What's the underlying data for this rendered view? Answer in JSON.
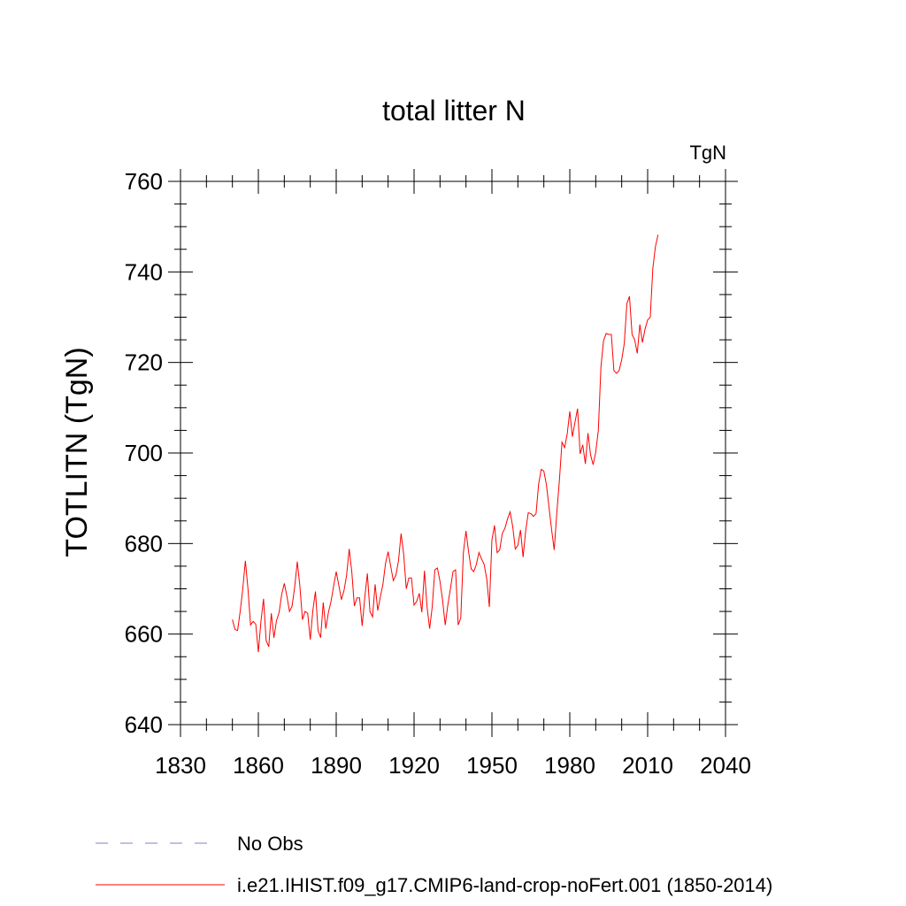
{
  "chart_data": {
    "type": "line",
    "title": "total litter N",
    "units_label": "TgN",
    "xlabel": "",
    "ylabel": "TOTLITN  (TgN)",
    "xlim": [
      1830,
      2040
    ],
    "ylim": [
      640,
      760
    ],
    "x_ticks": [
      "1830",
      "1860",
      "1890",
      "1920",
      "1950",
      "1980",
      "2010",
      "2040"
    ],
    "y_ticks": [
      "640",
      "660",
      "680",
      "700",
      "720",
      "740",
      "760"
    ],
    "grid": false,
    "legend_position": "bottom",
    "legend": [
      {
        "label": "No Obs",
        "color": "#8080c0",
        "style": "dashed"
      },
      {
        "label": "i.e21.IHIST.f09_g17.CMIP6-land-crop-noFert.001 (1850-2014)",
        "color": "#ff0000",
        "style": "solid"
      }
    ],
    "series": [
      {
        "name": "i.e21.IHIST.f09_g17.CMIP6-land-crop-noFert.001 (1850-2014)",
        "color": "#ff0000",
        "x_start": 1850,
        "x_step": 1,
        "values": [
          663.2,
          661.0,
          660.8,
          665.0,
          670.0,
          676.2,
          670.0,
          662.0,
          662.8,
          662.2,
          656.0,
          662.8,
          667.8,
          658.6,
          657.2,
          664.6,
          659.2,
          663.0,
          664.8,
          668.8,
          671.2,
          668.4,
          665.0,
          666.2,
          670.4,
          676.0,
          670.6,
          663.2,
          665.0,
          664.6,
          658.8,
          665.2,
          669.4,
          660.8,
          659.2,
          667.0,
          661.2,
          664.8,
          667.2,
          670.6,
          673.8,
          670.8,
          667.6,
          669.6,
          673.0,
          678.8,
          673.8,
          666.2,
          668.0,
          668.0,
          661.8,
          668.0,
          673.4,
          665.0,
          663.8,
          671.0,
          665.2,
          668.2,
          671.0,
          675.6,
          678.2,
          675.0,
          671.8,
          673.0,
          676.2,
          682.2,
          677.6,
          670.0,
          672.4,
          672.4,
          666.4,
          667.2,
          669.0,
          664.8,
          674.0,
          666.0,
          661.2,
          666.0,
          674.2,
          674.6,
          671.6,
          667.4,
          662.0,
          666.4,
          670.0,
          673.8,
          674.2,
          662.0,
          663.6,
          678.0,
          682.8,
          678.2,
          674.4,
          673.8,
          675.4,
          678.0,
          676.6,
          675.4,
          672.2,
          666.0,
          680.8,
          684.0,
          678.0,
          678.6,
          682.2,
          683.4,
          685.4,
          687.0,
          683.8,
          678.8,
          679.6,
          683.0,
          677.0,
          682.8,
          686.8,
          686.6,
          686.0,
          686.6,
          693.2,
          696.4,
          696.0,
          693.0,
          688.0,
          683.0,
          678.6,
          686.8,
          694.0,
          702.4,
          701.2,
          704.2,
          709.2,
          703.6,
          706.8,
          709.8,
          699.8,
          701.8,
          697.6,
          704.4,
          699.6,
          697.4,
          700.2,
          705.0,
          719.0,
          724.8,
          726.4,
          726.2,
          726.2,
          718.2,
          717.6,
          718.2,
          720.6,
          724.2,
          733.0,
          734.6,
          726.2,
          725.0,
          722.0,
          728.4,
          724.4,
          727.4,
          729.4,
          730.0,
          740.8,
          745.6,
          748.2
        ]
      }
    ]
  }
}
